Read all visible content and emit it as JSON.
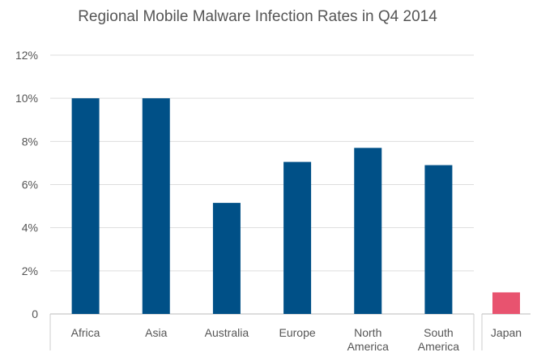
{
  "chart_data": {
    "type": "bar",
    "title": "Regional Mobile Malware Infection Rates in Q4 2014",
    "xlabel": "",
    "ylabel": "",
    "ylim": [
      0,
      12
    ],
    "yticks": [
      "0",
      "2%",
      "4%",
      "6%",
      "8%",
      "10%",
      "12%"
    ],
    "grid": true,
    "categories": [
      [
        "Africa"
      ],
      [
        "Asia"
      ],
      [
        "Australia"
      ],
      [
        "Europe"
      ],
      [
        "North",
        "America"
      ],
      [
        "South",
        "America"
      ]
    ],
    "values": [
      10.0,
      10.0,
      5.15,
      7.05,
      7.7,
      6.9
    ],
    "bar_color": "#005087",
    "highlight": {
      "category": "Japan",
      "value": 1.0,
      "color": "#e8536f"
    }
  }
}
